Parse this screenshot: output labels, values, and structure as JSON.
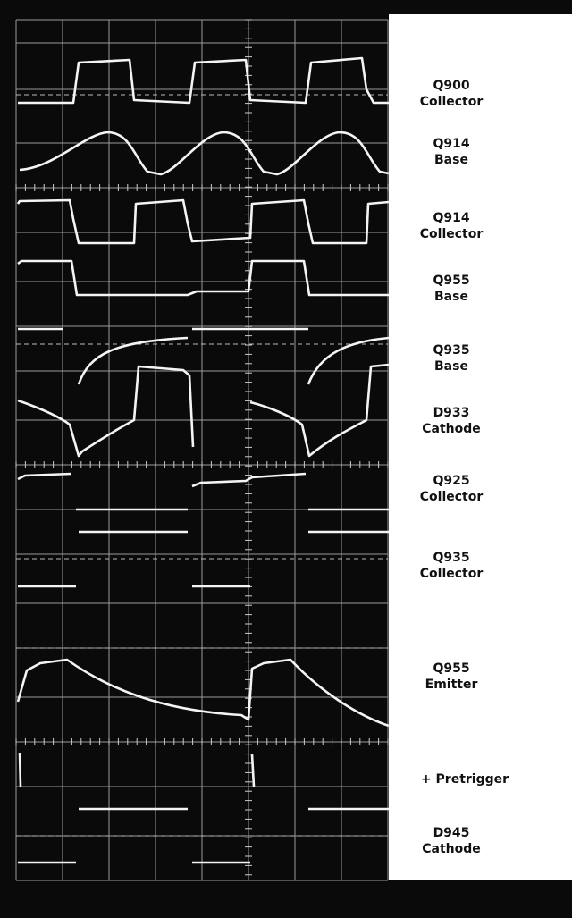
{
  "labels": [
    [
      "Q900",
      "Collector"
    ],
    [
      "Q914",
      "Base"
    ],
    [
      "Q914",
      "Collector"
    ],
    [
      "Q955",
      "Base"
    ],
    [
      "Q935",
      "Base"
    ],
    [
      "D933",
      "Cathode"
    ],
    [
      "Q925",
      "Collector"
    ],
    [
      "Q935",
      "Collector"
    ],
    [
      "Q955",
      "Emitter"
    ],
    [
      "+ Pretrigger"
    ],
    [
      "D945",
      "Cathode"
    ]
  ]
}
